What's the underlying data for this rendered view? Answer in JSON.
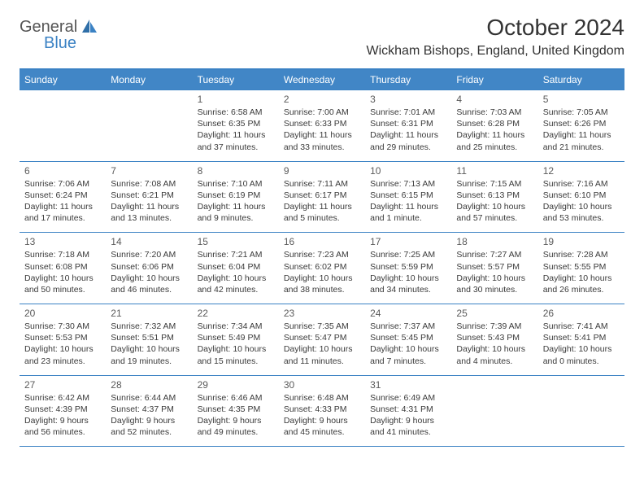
{
  "logo": {
    "general": "General",
    "blue": "Blue"
  },
  "header": {
    "title": "October 2024",
    "location": "Wickham Bishops, England, United Kingdom"
  },
  "colors": {
    "accent": "#3b82c4",
    "header_bg": "#4186c6",
    "header_fg": "#ffffff",
    "text": "#333333"
  },
  "days_of_week": [
    "Sunday",
    "Monday",
    "Tuesday",
    "Wednesday",
    "Thursday",
    "Friday",
    "Saturday"
  ],
  "weeks": [
    [
      null,
      null,
      {
        "n": "1",
        "sr": "Sunrise: 6:58 AM",
        "ss": "Sunset: 6:35 PM",
        "dl": "Daylight: 11 hours and 37 minutes."
      },
      {
        "n": "2",
        "sr": "Sunrise: 7:00 AM",
        "ss": "Sunset: 6:33 PM",
        "dl": "Daylight: 11 hours and 33 minutes."
      },
      {
        "n": "3",
        "sr": "Sunrise: 7:01 AM",
        "ss": "Sunset: 6:31 PM",
        "dl": "Daylight: 11 hours and 29 minutes."
      },
      {
        "n": "4",
        "sr": "Sunrise: 7:03 AM",
        "ss": "Sunset: 6:28 PM",
        "dl": "Daylight: 11 hours and 25 minutes."
      },
      {
        "n": "5",
        "sr": "Sunrise: 7:05 AM",
        "ss": "Sunset: 6:26 PM",
        "dl": "Daylight: 11 hours and 21 minutes."
      }
    ],
    [
      {
        "n": "6",
        "sr": "Sunrise: 7:06 AM",
        "ss": "Sunset: 6:24 PM",
        "dl": "Daylight: 11 hours and 17 minutes."
      },
      {
        "n": "7",
        "sr": "Sunrise: 7:08 AM",
        "ss": "Sunset: 6:21 PM",
        "dl": "Daylight: 11 hours and 13 minutes."
      },
      {
        "n": "8",
        "sr": "Sunrise: 7:10 AM",
        "ss": "Sunset: 6:19 PM",
        "dl": "Daylight: 11 hours and 9 minutes."
      },
      {
        "n": "9",
        "sr": "Sunrise: 7:11 AM",
        "ss": "Sunset: 6:17 PM",
        "dl": "Daylight: 11 hours and 5 minutes."
      },
      {
        "n": "10",
        "sr": "Sunrise: 7:13 AM",
        "ss": "Sunset: 6:15 PM",
        "dl": "Daylight: 11 hours and 1 minute."
      },
      {
        "n": "11",
        "sr": "Sunrise: 7:15 AM",
        "ss": "Sunset: 6:13 PM",
        "dl": "Daylight: 10 hours and 57 minutes."
      },
      {
        "n": "12",
        "sr": "Sunrise: 7:16 AM",
        "ss": "Sunset: 6:10 PM",
        "dl": "Daylight: 10 hours and 53 minutes."
      }
    ],
    [
      {
        "n": "13",
        "sr": "Sunrise: 7:18 AM",
        "ss": "Sunset: 6:08 PM",
        "dl": "Daylight: 10 hours and 50 minutes."
      },
      {
        "n": "14",
        "sr": "Sunrise: 7:20 AM",
        "ss": "Sunset: 6:06 PM",
        "dl": "Daylight: 10 hours and 46 minutes."
      },
      {
        "n": "15",
        "sr": "Sunrise: 7:21 AM",
        "ss": "Sunset: 6:04 PM",
        "dl": "Daylight: 10 hours and 42 minutes."
      },
      {
        "n": "16",
        "sr": "Sunrise: 7:23 AM",
        "ss": "Sunset: 6:02 PM",
        "dl": "Daylight: 10 hours and 38 minutes."
      },
      {
        "n": "17",
        "sr": "Sunrise: 7:25 AM",
        "ss": "Sunset: 5:59 PM",
        "dl": "Daylight: 10 hours and 34 minutes."
      },
      {
        "n": "18",
        "sr": "Sunrise: 7:27 AM",
        "ss": "Sunset: 5:57 PM",
        "dl": "Daylight: 10 hours and 30 minutes."
      },
      {
        "n": "19",
        "sr": "Sunrise: 7:28 AM",
        "ss": "Sunset: 5:55 PM",
        "dl": "Daylight: 10 hours and 26 minutes."
      }
    ],
    [
      {
        "n": "20",
        "sr": "Sunrise: 7:30 AM",
        "ss": "Sunset: 5:53 PM",
        "dl": "Daylight: 10 hours and 23 minutes."
      },
      {
        "n": "21",
        "sr": "Sunrise: 7:32 AM",
        "ss": "Sunset: 5:51 PM",
        "dl": "Daylight: 10 hours and 19 minutes."
      },
      {
        "n": "22",
        "sr": "Sunrise: 7:34 AM",
        "ss": "Sunset: 5:49 PM",
        "dl": "Daylight: 10 hours and 15 minutes."
      },
      {
        "n": "23",
        "sr": "Sunrise: 7:35 AM",
        "ss": "Sunset: 5:47 PM",
        "dl": "Daylight: 10 hours and 11 minutes."
      },
      {
        "n": "24",
        "sr": "Sunrise: 7:37 AM",
        "ss": "Sunset: 5:45 PM",
        "dl": "Daylight: 10 hours and 7 minutes."
      },
      {
        "n": "25",
        "sr": "Sunrise: 7:39 AM",
        "ss": "Sunset: 5:43 PM",
        "dl": "Daylight: 10 hours and 4 minutes."
      },
      {
        "n": "26",
        "sr": "Sunrise: 7:41 AM",
        "ss": "Sunset: 5:41 PM",
        "dl": "Daylight: 10 hours and 0 minutes."
      }
    ],
    [
      {
        "n": "27",
        "sr": "Sunrise: 6:42 AM",
        "ss": "Sunset: 4:39 PM",
        "dl": "Daylight: 9 hours and 56 minutes."
      },
      {
        "n": "28",
        "sr": "Sunrise: 6:44 AM",
        "ss": "Sunset: 4:37 PM",
        "dl": "Daylight: 9 hours and 52 minutes."
      },
      {
        "n": "29",
        "sr": "Sunrise: 6:46 AM",
        "ss": "Sunset: 4:35 PM",
        "dl": "Daylight: 9 hours and 49 minutes."
      },
      {
        "n": "30",
        "sr": "Sunrise: 6:48 AM",
        "ss": "Sunset: 4:33 PM",
        "dl": "Daylight: 9 hours and 45 minutes."
      },
      {
        "n": "31",
        "sr": "Sunrise: 6:49 AM",
        "ss": "Sunset: 4:31 PM",
        "dl": "Daylight: 9 hours and 41 minutes."
      },
      null,
      null
    ]
  ]
}
